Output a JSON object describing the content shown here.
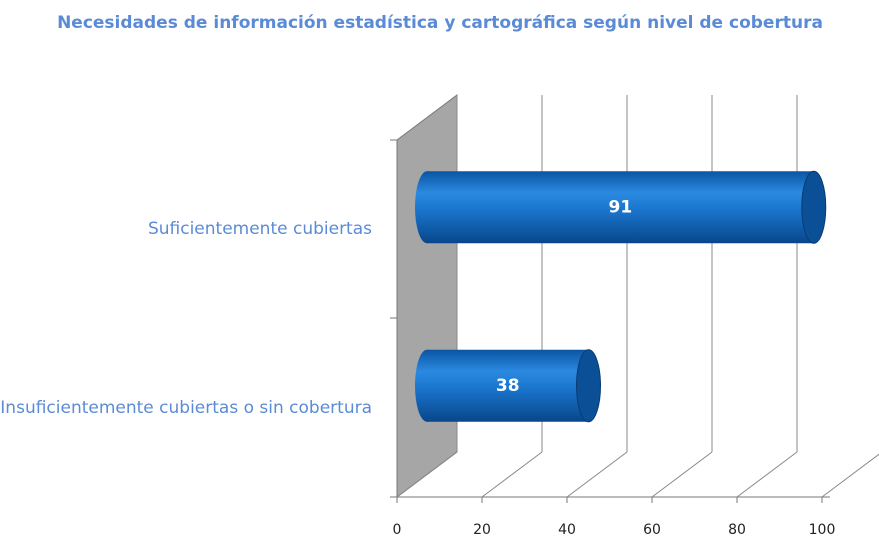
{
  "chart_data": {
    "type": "bar",
    "orientation": "horizontal",
    "title": "Necesidades de información estadística y cartográfica según nivel de cobertura",
    "categories": [
      "Suficientemente cubiertas",
      "Insuficientemente cubiertas o sin cobertura"
    ],
    "values": [
      91,
      38
    ],
    "color": "#1f77d0",
    "xlim": [
      0,
      100
    ],
    "xticks": [
      0,
      20,
      40,
      60,
      80,
      100
    ],
    "grid": true
  }
}
